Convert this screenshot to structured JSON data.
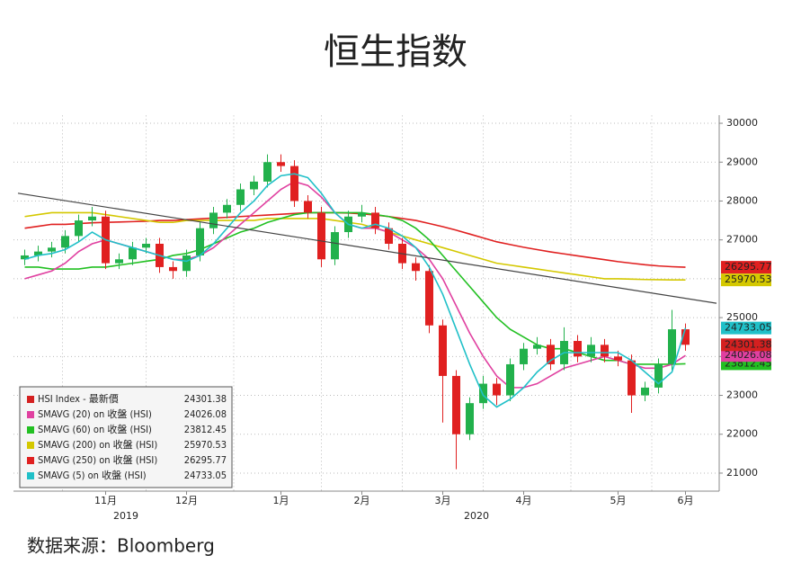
{
  "chart_data": {
    "type": "candlestick",
    "title": "恒生指数",
    "source": "数据来源：Bloomberg",
    "categories": [
      null,
      null,
      null,
      null,
      null,
      null,
      "11月",
      null,
      null,
      null,
      null,
      null,
      "12月",
      null,
      null,
      null,
      null,
      null,
      null,
      "1月",
      null,
      null,
      null,
      null,
      null,
      "2月",
      null,
      null,
      null,
      null,
      null,
      "3月",
      null,
      null,
      null,
      null,
      null,
      "4月",
      null,
      null,
      null,
      null,
      null,
      null,
      "5月",
      null,
      null,
      null,
      null,
      "6月"
    ],
    "year_labels": [
      "2019",
      "2020"
    ],
    "ylim": [
      20550,
      30200
    ],
    "yticks": [
      21000,
      22000,
      23000,
      24000,
      25000,
      26000,
      27000,
      28000,
      29000,
      30000
    ],
    "grid": true,
    "trend_line": {
      "color": "#444444",
      "values": [
        28200,
        25370
      ]
    },
    "series": [
      {
        "name": "HSI Index - 最新價",
        "type": "candlestick",
        "color": "#d42020",
        "up_color": "#22b14c",
        "down_color": "#e02020",
        "open": [
          26500,
          26600,
          26700,
          26800,
          27100,
          27500,
          27600,
          26400,
          26500,
          26800,
          26900,
          26300,
          26200,
          26600,
          27300,
          27700,
          27900,
          28300,
          28500,
          29000,
          28900,
          28000,
          27700,
          26500,
          27200,
          27600,
          27700,
          27300,
          26900,
          26400,
          26200,
          24800,
          23500,
          22000,
          22800,
          23300,
          23000,
          23800,
          24200,
          24300,
          23800,
          24400,
          24000,
          24300,
          24000,
          23900,
          23000,
          23200,
          23800,
          24700
        ],
        "high": [
          26750,
          26850,
          26950,
          27250,
          27650,
          27850,
          27750,
          26650,
          26950,
          27050,
          27050,
          26450,
          26750,
          27450,
          27850,
          28050,
          28450,
          28650,
          29200,
          29200,
          29050,
          28150,
          27850,
          27350,
          27750,
          27900,
          27850,
          27450,
          27050,
          26550,
          26350,
          24950,
          23650,
          22950,
          23500,
          23450,
          23950,
          24350,
          24500,
          24450,
          24750,
          24550,
          24500,
          24450,
          24150,
          24050,
          23350,
          23950,
          25200,
          24850
        ],
        "low": [
          26350,
          26450,
          26550,
          26650,
          26950,
          27350,
          26250,
          26250,
          26350,
          26650,
          26150,
          26000,
          26050,
          26450,
          27150,
          27550,
          27750,
          28150,
          28350,
          28750,
          27850,
          27550,
          26300,
          26350,
          27050,
          27450,
          27150,
          26750,
          26250,
          25950,
          24600,
          22300,
          21100,
          21850,
          22650,
          22750,
          22850,
          23650,
          24050,
          23650,
          23650,
          23850,
          23850,
          23850,
          23750,
          22550,
          22850,
          23050,
          23650,
          24150
        ],
        "close": [
          26600,
          26700,
          26800,
          27100,
          27500,
          27600,
          26400,
          26500,
          26800,
          26900,
          26300,
          26200,
          26600,
          27300,
          27700,
          27900,
          28300,
          28500,
          29000,
          28900,
          28000,
          27700,
          26500,
          27200,
          27600,
          27700,
          27300,
          26900,
          26400,
          26200,
          24800,
          23500,
          22000,
          22800,
          23300,
          23000,
          23800,
          24200,
          24300,
          23800,
          24400,
          24000,
          24300,
          24000,
          23900,
          23000,
          23200,
          23800,
          24700,
          24301.38
        ]
      },
      {
        "name": "SMAVG (20)  on 收盤 (HSI)",
        "type": "line",
        "color": "#e040a0",
        "values": [
          26000,
          26100,
          26200,
          26400,
          26700,
          26900,
          27000,
          26900,
          26800,
          26700,
          26600,
          26500,
          26500,
          26600,
          26800,
          27100,
          27400,
          27700,
          28000,
          28300,
          28500,
          28400,
          28100,
          27700,
          27400,
          27300,
          27300,
          27200,
          27000,
          26800,
          26500,
          26000,
          25300,
          24600,
          24000,
          23500,
          23200,
          23200,
          23300,
          23500,
          23700,
          23800,
          23900,
          24000,
          23900,
          23800,
          23700,
          23700,
          23800,
          24026.08
        ]
      },
      {
        "name": "SMAVG (60)  on 收盤 (HSI)",
        "type": "line",
        "color": "#22c022",
        "values": [
          26300,
          26300,
          26250,
          26250,
          26250,
          26300,
          26300,
          26350,
          26400,
          26450,
          26500,
          26600,
          26650,
          26750,
          26900,
          27050,
          27200,
          27300,
          27450,
          27550,
          27650,
          27700,
          27700,
          27700,
          27700,
          27700,
          27650,
          27600,
          27500,
          27300,
          27000,
          26600,
          26200,
          25800,
          25400,
          25000,
          24700,
          24500,
          24300,
          24200,
          24200,
          24100,
          24000,
          23900,
          23900,
          23800,
          23800,
          23800,
          23800,
          23812.45
        ]
      },
      {
        "name": "SMAVG (200)  on 收盤 (HSI)",
        "type": "line",
        "color": "#d4c800",
        "values": [
          27600,
          27650,
          27700,
          27700,
          27700,
          27700,
          27650,
          27600,
          27550,
          27500,
          27450,
          27450,
          27500,
          27500,
          27500,
          27500,
          27500,
          27500,
          27550,
          27550,
          27550,
          27550,
          27550,
          27500,
          27450,
          27400,
          27300,
          27200,
          27100,
          27000,
          26900,
          26800,
          26700,
          26600,
          26500,
          26400,
          26350,
          26300,
          26250,
          26200,
          26150,
          26100,
          26050,
          26000,
          26000,
          25990,
          25980,
          25975,
          25970,
          25970.53
        ]
      },
      {
        "name": "SMAVG (250)  on 收盤 (HSI)",
        "type": "line",
        "color": "#e02020",
        "values": [
          27300,
          27350,
          27400,
          27400,
          27420,
          27440,
          27450,
          27460,
          27470,
          27480,
          27500,
          27500,
          27520,
          27540,
          27560,
          27580,
          27600,
          27620,
          27640,
          27660,
          27680,
          27700,
          27700,
          27700,
          27690,
          27670,
          27640,
          27600,
          27550,
          27500,
          27420,
          27340,
          27250,
          27150,
          27050,
          26950,
          26880,
          26810,
          26750,
          26690,
          26640,
          26590,
          26540,
          26490,
          26440,
          26400,
          26360,
          26330,
          26310,
          26295.77
        ]
      },
      {
        "name": "SMAVG (5)  on 收盤 (HSI)",
        "type": "line",
        "color": "#20c0c8",
        "values": [
          26500,
          26600,
          26650,
          26750,
          26950,
          27200,
          27000,
          26900,
          26800,
          26700,
          26600,
          26500,
          26450,
          26600,
          26900,
          27300,
          27700,
          28000,
          28400,
          28650,
          28700,
          28600,
          28200,
          27700,
          27400,
          27300,
          27400,
          27300,
          27100,
          26800,
          26300,
          25600,
          24700,
          23800,
          23000,
          22700,
          22900,
          23200,
          23600,
          23900,
          24100,
          24100,
          24100,
          24100,
          24100,
          23900,
          23600,
          23300,
          23600,
          24733.05
        ]
      }
    ]
  }
}
